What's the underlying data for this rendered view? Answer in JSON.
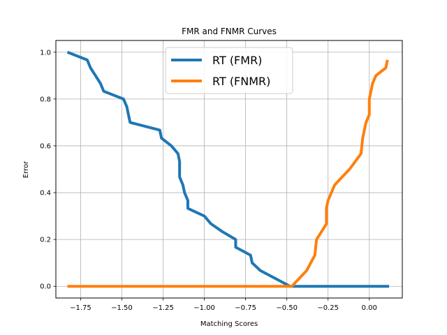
{
  "chart_data": {
    "type": "line",
    "title": "FMR and FNMR Curves",
    "xlabel": "Matching Scores",
    "ylabel": "Error",
    "xlim": [
      -1.9,
      0.2
    ],
    "ylim": [
      -0.05,
      1.05
    ],
    "grid": true,
    "legend_position": "top-center",
    "x_ticks": [
      -1.75,
      -1.5,
      -1.25,
      -1.0,
      -0.75,
      -0.5,
      -0.25,
      0.0
    ],
    "x_tick_labels": [
      "−1.75",
      "−1.50",
      "−1.25",
      "−1.00",
      "−0.75",
      "−0.50",
      "−0.25",
      "0.00"
    ],
    "y_ticks": [
      0.0,
      0.2,
      0.4,
      0.6,
      0.8,
      1.0
    ],
    "y_tick_labels": [
      "0.0",
      "0.2",
      "0.4",
      "0.6",
      "0.8",
      "1.0"
    ],
    "series": [
      {
        "name": "RT (FMR)",
        "color": "#1f77b4",
        "points": [
          [
            -1.83,
            1.0
          ],
          [
            -1.71,
            0.967
          ],
          [
            -1.69,
            0.933
          ],
          [
            -1.66,
            0.9
          ],
          [
            -1.63,
            0.867
          ],
          [
            -1.61,
            0.833
          ],
          [
            -1.49,
            0.8
          ],
          [
            -1.47,
            0.767
          ],
          [
            -1.46,
            0.733
          ],
          [
            -1.45,
            0.7
          ],
          [
            -1.27,
            0.667
          ],
          [
            -1.26,
            0.633
          ],
          [
            -1.2,
            0.6
          ],
          [
            -1.16,
            0.567
          ],
          [
            -1.15,
            0.533
          ],
          [
            -1.15,
            0.5
          ],
          [
            -1.15,
            0.467
          ],
          [
            -1.13,
            0.433
          ],
          [
            -1.12,
            0.4
          ],
          [
            -1.1,
            0.367
          ],
          [
            -1.1,
            0.333
          ],
          [
            -1.0,
            0.3
          ],
          [
            -0.96,
            0.267
          ],
          [
            -0.89,
            0.233
          ],
          [
            -0.81,
            0.2
          ],
          [
            -0.81,
            0.167
          ],
          [
            -0.72,
            0.133
          ],
          [
            -0.71,
            0.1
          ],
          [
            -0.66,
            0.067
          ],
          [
            -0.48,
            0.0
          ],
          [
            0.12,
            0.0
          ]
        ]
      },
      {
        "name": "RT (FNMR)",
        "color": "#ff7f0e",
        "points": [
          [
            -1.83,
            0.0
          ],
          [
            -0.47,
            0.0
          ],
          [
            -0.38,
            0.067
          ],
          [
            -0.33,
            0.133
          ],
          [
            -0.32,
            0.2
          ],
          [
            -0.29,
            0.233
          ],
          [
            -0.26,
            0.267
          ],
          [
            -0.26,
            0.333
          ],
          [
            -0.25,
            0.367
          ],
          [
            -0.21,
            0.433
          ],
          [
            -0.12,
            0.5
          ],
          [
            -0.05,
            0.567
          ],
          [
            -0.04,
            0.633
          ],
          [
            -0.03,
            0.667
          ],
          [
            -0.02,
            0.7
          ],
          [
            0.0,
            0.733
          ],
          [
            0.0,
            0.8
          ],
          [
            0.01,
            0.833
          ],
          [
            0.02,
            0.867
          ],
          [
            0.04,
            0.9
          ],
          [
            0.1,
            0.933
          ],
          [
            0.11,
            0.967
          ]
        ]
      }
    ]
  }
}
